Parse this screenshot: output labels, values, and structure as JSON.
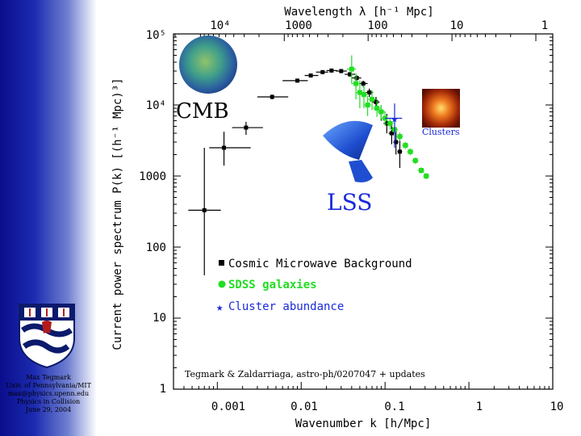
{
  "chart_data": {
    "type": "scatter",
    "log_x": true,
    "log_y": true,
    "xlim": [
      0.0003,
      10
    ],
    "ylim": [
      1,
      100000
    ],
    "xlabel": "Wavenumber k [h/Mpc]",
    "ylabel": "Current power spectrum P(k) [(h⁻¹ Mpc)³]",
    "top_axis_label": "Wavelength λ [h⁻¹ Mpc]",
    "x_tick_labels": [
      "0.001",
      "0.01",
      "0.1",
      "1",
      "10"
    ],
    "x_tick_values": [
      0.001,
      0.01,
      0.1,
      1,
      10
    ],
    "y_tick_labels": [
      "1",
      "10",
      "100",
      "1000",
      "10⁴",
      "10⁵"
    ],
    "y_tick_values": [
      1,
      10,
      100,
      1000,
      10000,
      100000
    ],
    "top_tick_labels": [
      "10⁴",
      "1000",
      "100",
      "10",
      "1"
    ],
    "top_tick_values": [
      10000,
      1000,
      100,
      10,
      1
    ],
    "series": [
      {
        "name": "Cosmic Microwave Background",
        "marker": "square",
        "color": "#000000",
        "points": [
          {
            "x": 0.0007,
            "y": 330,
            "xerr": [
              0.00045,
              0.0011
            ],
            "yerr": [
              40,
              2500
            ]
          },
          {
            "x": 0.0012,
            "y": 2500,
            "xerr": [
              0.0008,
              0.0025
            ],
            "yerr": [
              1400,
              4200
            ]
          },
          {
            "x": 0.0022,
            "y": 4800,
            "xerr": [
              0.0015,
              0.0035
            ],
            "yerr": [
              3800,
              5800
            ]
          },
          {
            "x": 0.0045,
            "y": 13000,
            "xerr": [
              0.003,
              0.007
            ],
            "yerr": [
              12000,
              14000
            ]
          },
          {
            "x": 0.009,
            "y": 22000,
            "xerr": [
              0.006,
              0.012
            ],
            "yerr": [
              21000,
              23000
            ]
          },
          {
            "x": 0.013,
            "y": 26000,
            "xerr": [
              0.011,
              0.016
            ],
            "yerr": [
              25000,
              27000
            ]
          },
          {
            "x": 0.018,
            "y": 29000,
            "xerr": [
              0.015,
              0.021
            ],
            "yerr": [
              28000,
              30000
            ]
          },
          {
            "x": 0.023,
            "y": 30500,
            "xerr": [
              0.02,
              0.027
            ],
            "yerr": [
              29000,
              32000
            ]
          },
          {
            "x": 0.03,
            "y": 30000,
            "xerr": [
              0.026,
              0.035
            ],
            "yerr": [
              28000,
              32000
            ]
          },
          {
            "x": 0.038,
            "y": 27000,
            "xerr": [
              0.033,
              0.044
            ],
            "yerr": [
              25000,
              29000
            ]
          },
          {
            "x": 0.046,
            "y": 24000,
            "xerr": [
              0.04,
              0.052
            ],
            "yerr": [
              22000,
              26000
            ]
          },
          {
            "x": 0.055,
            "y": 20000,
            "xerr": [
              0.049,
              0.062
            ],
            "yerr": [
              18000,
              22000
            ]
          },
          {
            "x": 0.065,
            "y": 15000,
            "xerr": [
              0.058,
              0.072
            ],
            "yerr": [
              13000,
              17000
            ]
          },
          {
            "x": 0.078,
            "y": 11000,
            "xerr": [
              0.07,
              0.086
            ],
            "yerr": [
              9000,
              13000
            ]
          },
          {
            "x": 0.09,
            "y": 8000,
            "xerr": [
              0.082,
              0.1
            ],
            "yerr": [
              6000,
              10000
            ]
          },
          {
            "x": 0.105,
            "y": 5500,
            "xerr": [
              0.096,
              0.115
            ],
            "yerr": [
              4000,
              7500
            ]
          },
          {
            "x": 0.12,
            "y": 4000,
            "xerr": [
              0.11,
              0.13
            ],
            "yerr": [
              2800,
              5500
            ]
          },
          {
            "x": 0.135,
            "y": 3000,
            "xerr": [
              0.125,
              0.145
            ],
            "yerr": [
              2000,
              4300
            ]
          },
          {
            "x": 0.15,
            "y": 2200,
            "xerr": [
              0.14,
              0.16
            ],
            "yerr": [
              1300,
              3400
            ]
          }
        ]
      },
      {
        "name": "SDSS galaxies",
        "marker": "circle",
        "color": "#22dd22",
        "points": [
          {
            "x": 0.04,
            "y": 32000,
            "xerr": [
              0.035,
              0.045
            ],
            "yerr": [
              20000,
              50000
            ]
          },
          {
            "x": 0.045,
            "y": 20000,
            "xerr": [
              0.04,
              0.05
            ],
            "yerr": [
              12000,
              28000
            ]
          },
          {
            "x": 0.05,
            "y": 15000,
            "xerr": [
              0.045,
              0.056
            ],
            "yerr": [
              9000,
              22000
            ]
          },
          {
            "x": 0.056,
            "y": 14000,
            "xerr": [
              0.05,
              0.062
            ],
            "yerr": [
              9000,
              19000
            ]
          },
          {
            "x": 0.062,
            "y": 10000,
            "xerr": [
              0.056,
              0.068
            ],
            "yerr": [
              7000,
              13500
            ]
          },
          {
            "x": 0.07,
            "y": 12000,
            "xerr": [
              0.063,
              0.077
            ],
            "yerr": [
              8500,
              16000
            ]
          },
          {
            "x": 0.08,
            "y": 9000,
            "xerr": [
              0.072,
              0.088
            ],
            "yerr": [
              6800,
              11500
            ]
          },
          {
            "x": 0.09,
            "y": 8000,
            "xerr": [
              0.082,
              0.1
            ],
            "yerr": [
              6300,
              10000
            ]
          },
          {
            "x": 0.1,
            "y": 6500,
            "xerr": [
              0.09,
              0.11
            ],
            "yerr": [
              5200,
              8000
            ]
          },
          {
            "x": 0.115,
            "y": 5500,
            "xerr": [
              0.104,
              0.126
            ],
            "yerr": [
              4500,
              6500
            ]
          },
          {
            "x": 0.13,
            "y": 4500,
            "xerr": [
              0.118,
              0.142
            ],
            "yerr": [
              3800,
              5200
            ]
          },
          {
            "x": 0.15,
            "y": 3600,
            "xerr": [
              0.136,
              0.164
            ],
            "yerr": [
              3100,
              4100
            ]
          },
          {
            "x": 0.175,
            "y": 2700,
            "xerr": [
              0.16,
              0.19
            ],
            "yerr": [
              2400,
              3000
            ]
          },
          {
            "x": 0.2,
            "y": 2200,
            "xerr": [
              0.183,
              0.218
            ],
            "yerr": [
              1950,
              2450
            ]
          },
          {
            "x": 0.23,
            "y": 1650,
            "xerr": [
              0.21,
              0.25
            ],
            "yerr": [
              1480,
              1820
            ]
          },
          {
            "x": 0.27,
            "y": 1200,
            "xerr": [
              0.245,
              0.295
            ],
            "yerr": [
              1080,
              1320
            ]
          },
          {
            "x": 0.31,
            "y": 1000,
            "xerr": [
              0.285,
              0.335
            ],
            "yerr": [
              900,
              1100
            ]
          }
        ]
      },
      {
        "name": "Cluster abundance",
        "marker": "star",
        "color": "#1a2ad8",
        "points": [
          {
            "x": 0.13,
            "y": 6500,
            "xerr": [
              0.1,
              0.16
            ],
            "yerr": [
              2500,
              10500
            ]
          }
        ]
      }
    ],
    "legend": [
      "Cosmic Microwave Background",
      "SDSS galaxies",
      "Cluster abundance"
    ],
    "legend_position": "lower-center",
    "annotations": {
      "cmb": "CMB",
      "clusters": "Clusters",
      "lss": "LSS",
      "citation": "Tegmark & Zaldarriaga, astro-ph/0207047 + updates"
    },
    "colors": {
      "cmb_label": "#000000",
      "lss_label": "#1a2ad8",
      "clusters_label": "#1a2ad8"
    }
  },
  "author": {
    "line1": "Max Tegmark",
    "line2": "Univ. of Pennsylvania/MIT",
    "line3": "max@physics.upenn.edu",
    "line4": "Physics in Collision",
    "line5": "June 29, 2004"
  }
}
